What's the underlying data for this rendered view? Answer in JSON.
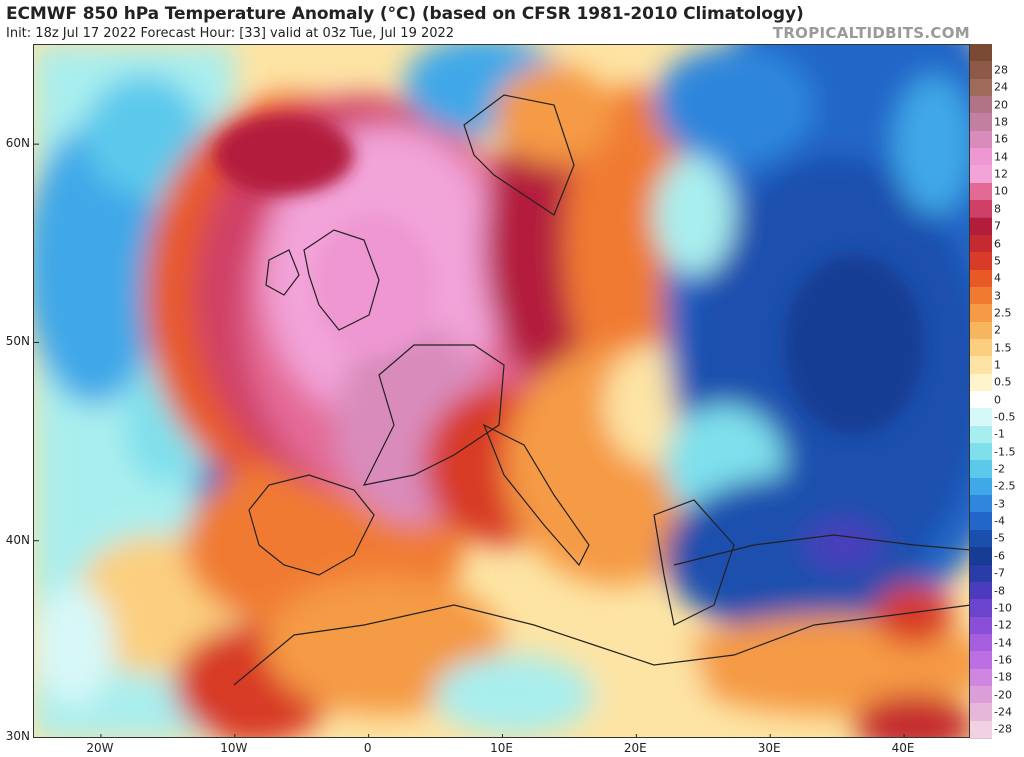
{
  "header": {
    "title": "ECMWF 850 hPa Temperature Anomaly (°C) (based on CFSR 1981-2010 Climatology)",
    "subtitle": "Init: 18z Jul 17 2022   Forecast Hour: [33]   valid at 03z Tue, Jul 19 2022",
    "watermark": "TROPICALTIDBITS.COM"
  },
  "map": {
    "lat_labels": [
      "60N",
      "50N",
      "40N",
      "30N"
    ],
    "lon_labels": [
      "20W",
      "10W",
      "0",
      "10E",
      "20E",
      "30E",
      "40E"
    ],
    "lat_values": [
      60,
      50,
      40,
      30
    ],
    "lon_values": [
      -20,
      -10,
      0,
      10,
      20,
      30,
      40
    ],
    "extent": {
      "lon_min": -25,
      "lon_max": 45,
      "lat_min": 30,
      "lat_max": 65
    }
  },
  "legend": {
    "entries": [
      {
        "label": "",
        "color": "#7a4a35"
      },
      {
        "label": "28",
        "color": "#8c5a47"
      },
      {
        "label": "24",
        "color": "#9e6a5a"
      },
      {
        "label": "20",
        "color": "#b07486"
      },
      {
        "label": "18",
        "color": "#c27fa0"
      },
      {
        "label": "16",
        "color": "#d98cbc"
      },
      {
        "label": "14",
        "color": "#ee97d2"
      },
      {
        "label": "12",
        "color": "#f2a3d8"
      },
      {
        "label": "10",
        "color": "#e46a96"
      },
      {
        "label": "8",
        "color": "#cf3f66"
      },
      {
        "label": "7",
        "color": "#b31d3c"
      },
      {
        "label": "6",
        "color": "#c42a2f"
      },
      {
        "label": "5",
        "color": "#d83b28"
      },
      {
        "label": "4",
        "color": "#e85a25"
      },
      {
        "label": "3",
        "color": "#f07a30"
      },
      {
        "label": "2.5",
        "color": "#f59a45"
      },
      {
        "label": "2",
        "color": "#f8b55f"
      },
      {
        "label": "1.5",
        "color": "#fbcf7f"
      },
      {
        "label": "1",
        "color": "#fde4a4"
      },
      {
        "label": "0.5",
        "color": "#fff4cc"
      },
      {
        "label": "0",
        "color": "#ffffff"
      },
      {
        "label": "-0.5",
        "color": "#d7f8f8"
      },
      {
        "label": "-1",
        "color": "#a9eeee"
      },
      {
        "label": "-1.5",
        "color": "#7fe0ec"
      },
      {
        "label": "-2",
        "color": "#5bc9ec"
      },
      {
        "label": "-2.5",
        "color": "#3fa8e8"
      },
      {
        "label": "-3",
        "color": "#2f86dc"
      },
      {
        "label": "-4",
        "color": "#2166c8"
      },
      {
        "label": "-5",
        "color": "#1a4fae"
      },
      {
        "label": "-6",
        "color": "#163c94"
      },
      {
        "label": "-7",
        "color": "#2a3ca8"
      },
      {
        "label": "-8",
        "color": "#4a3cbc"
      },
      {
        "label": "-10",
        "color": "#6a44cc"
      },
      {
        "label": "-12",
        "color": "#8a4fd6"
      },
      {
        "label": "-14",
        "color": "#a45ede"
      },
      {
        "label": "-16",
        "color": "#bc6fe2"
      },
      {
        "label": "-18",
        "color": "#cf86e0"
      },
      {
        "label": "-20",
        "color": "#dc9ed8"
      },
      {
        "label": "-24",
        "color": "#e6b7d8"
      },
      {
        "label": "-28",
        "color": "#f0d2e2"
      }
    ]
  }
}
